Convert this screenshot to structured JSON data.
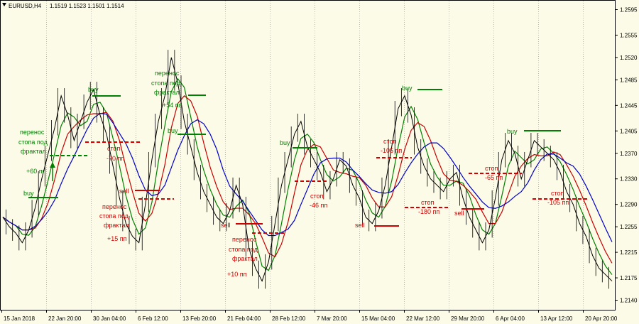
{
  "window": {
    "title": "EURUSD,H4",
    "ohlc": "1.1519 1.1523 1.1501 1.1514",
    "menu_icon": "triangle-down-icon"
  },
  "colors": {
    "background": "#fcfbe7",
    "price": "#000000",
    "grid": "#8c8c8c",
    "ma_fast": "#008000",
    "ma_mid": "#c80000",
    "ma_slow": "#0000c8",
    "buy": "#008000",
    "sell": "#d00000"
  },
  "chart_data": {
    "type": "line",
    "symbol": "EURUSD",
    "timeframe": "H4",
    "ylim": [
      1.2125,
      1.261
    ],
    "y_ticks": [
      1.2595,
      1.2555,
      1.252,
      1.2485,
      1.2445,
      1.2405,
      1.237,
      1.233,
      1.229,
      1.2255,
      1.2215,
      1.2175,
      1.214
    ],
    "x_tick_labels": [
      "15 Jan 2018",
      "22 Jan 20:00",
      "30 Jan 04:00",
      "6 Feb 12:00",
      "13 Feb 20:00",
      "21 Feb 04:00",
      "28 Feb 12:00",
      "7 Mar 20:00",
      "15 Mar 04:00",
      "22 Mar 12:00",
      "29 Mar 20:00",
      "6 Apr 04:00",
      "13 Apr 12:00",
      "20 Apr 20:00"
    ],
    "grid": "vertical dotted",
    "series": [
      {
        "values": [
          1.227,
          1.2255,
          1.2245,
          1.223,
          1.225,
          1.2285,
          1.233,
          1.237,
          1.241,
          1.246,
          1.243,
          1.239,
          1.242,
          1.245,
          1.247,
          1.243,
          1.24,
          1.235,
          1.23,
          1.226,
          1.224,
          1.223,
          1.229,
          1.236,
          1.242,
          1.246,
          1.252,
          1.248,
          1.242,
          1.238,
          1.234,
          1.231,
          1.229,
          1.227,
          1.226,
          1.228,
          1.232,
          1.229,
          1.222,
          1.219,
          1.217,
          1.22,
          1.226,
          1.232,
          1.236,
          1.24,
          1.242,
          1.238,
          1.236,
          1.234,
          1.231,
          1.233,
          1.236,
          1.235,
          1.232,
          1.23,
          1.227,
          1.226,
          1.228,
          1.232,
          1.238,
          1.244,
          1.246,
          1.243,
          1.238,
          1.235,
          1.233,
          1.232,
          1.231,
          1.233,
          1.234,
          1.23,
          1.227,
          1.225,
          1.223,
          1.225,
          1.23,
          1.236,
          1.239,
          1.237,
          1.233,
          1.236,
          1.239,
          1.238,
          1.237,
          1.236,
          1.234,
          1.231,
          1.229,
          1.226,
          1.224,
          1.221,
          1.219,
          1.218,
          1.217
        ]
      }
    ]
  },
  "annotations": [
    {
      "text": "buy",
      "color": "buy"
    },
    {
      "text": "+60 пп",
      "color": "buy"
    },
    {
      "text": "перенос",
      "color": "buy"
    },
    {
      "text": "стопа под",
      "color": "buy"
    },
    {
      "text": "фрактал",
      "color": "buy"
    },
    {
      "text": "buy",
      "color": "buy"
    },
    {
      "text": "стоп",
      "color": "sell"
    },
    {
      "text": "-70 пп",
      "color": "sell"
    },
    {
      "text": "sell",
      "color": "sell"
    },
    {
      "text": "перенос",
      "color": "sell"
    },
    {
      "text": "стопа под",
      "color": "sell"
    },
    {
      "text": "фрактал",
      "color": "sell"
    },
    {
      "text": "+15 пп",
      "color": "sell"
    },
    {
      "text": "перенос",
      "color": "buy"
    },
    {
      "text": "стопа под",
      "color": "buy"
    },
    {
      "text": "фрактал",
      "color": "buy"
    },
    {
      "text": "+54 пп",
      "color": "buy"
    },
    {
      "text": "buy",
      "color": "buy"
    },
    {
      "text": "sell",
      "color": "sell"
    },
    {
      "text": "перенос",
      "color": "sell"
    },
    {
      "text": "стопа под",
      "color": "sell"
    },
    {
      "text": "фрактал",
      "color": "sell"
    },
    {
      "text": "+10 пп",
      "color": "sell"
    },
    {
      "text": "buy",
      "color": "buy"
    },
    {
      "text": "стоп",
      "color": "sell"
    },
    {
      "text": "-46 пп",
      "color": "sell"
    },
    {
      "text": "стоп",
      "color": "sell"
    },
    {
      "text": "-105 пп",
      "color": "sell"
    },
    {
      "text": "sell",
      "color": "sell"
    },
    {
      "text": "buy",
      "color": "buy"
    },
    {
      "text": "стоп",
      "color": "sell"
    },
    {
      "text": "-180 пп",
      "color": "sell"
    },
    {
      "text": "sell",
      "color": "sell"
    },
    {
      "text": "стоп",
      "color": "sell"
    },
    {
      "text": "-65 пп",
      "color": "sell"
    },
    {
      "text": "buy",
      "color": "buy"
    },
    {
      "text": "стоп",
      "color": "sell"
    },
    {
      "text": "-105 пп",
      "color": "sell"
    }
  ]
}
